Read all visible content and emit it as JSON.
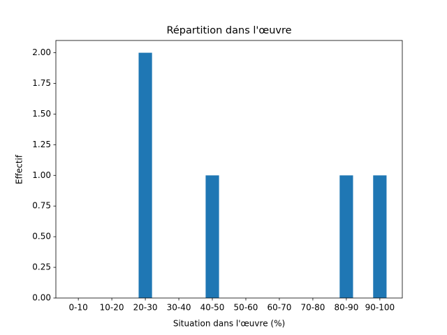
{
  "chart_data": {
    "type": "bar",
    "title": "Répartition dans l'œuvre",
    "x_label": "Situation dans l'œuvre (%)",
    "y_label": "Effectif",
    "categories": [
      "0-10",
      "10-20",
      "20-30",
      "30-40",
      "40-50",
      "50-60",
      "60-70",
      "70-80",
      "80-90",
      "90-100"
    ],
    "values": [
      0,
      0,
      2,
      0,
      1,
      0,
      0,
      0,
      1,
      1
    ],
    "color": "#1f77b4",
    "ylim": [
      0,
      2.1
    ],
    "yticks": [
      {
        "value": 0,
        "label": "0.00"
      },
      {
        "value": 0.25,
        "label": "0.25"
      },
      {
        "value": 0.5,
        "label": "0.50"
      },
      {
        "value": 0.75,
        "label": "0.75"
      },
      {
        "value": 1,
        "label": "1.00"
      },
      {
        "value": 1.25,
        "label": "1.25"
      },
      {
        "value": 1.5,
        "label": "1.50"
      },
      {
        "value": 1.75,
        "label": "1.75"
      },
      {
        "value": 2,
        "label": "2.00"
      }
    ],
    "grid": false
  }
}
